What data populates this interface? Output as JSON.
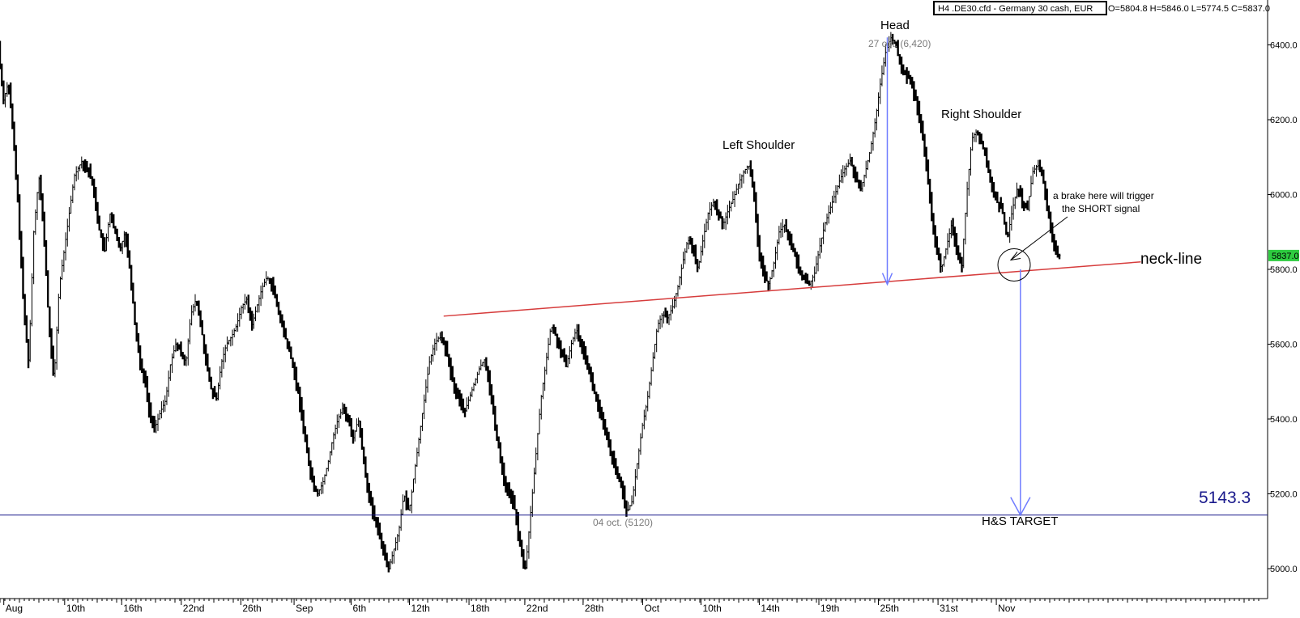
{
  "header": {
    "instrument_box": "H4 .DE30.cfd - Germany 30 cash, EUR",
    "ohlc": "O=5804.8 H=5846.0 L=5774.5 C=5837.0"
  },
  "chart_data": {
    "type": "candlestick",
    "title": "",
    "xlabel": "",
    "ylabel": "",
    "ylim": [
      4920,
      6520
    ],
    "y_ticks": [
      5000.0,
      5200.0,
      5400.0,
      5600.0,
      5800.0,
      6000.0,
      6200.0,
      6400.0
    ],
    "x_tick_labels": [
      "Aug",
      "10th",
      "16th",
      "22nd",
      "26th",
      "Sep",
      "6th",
      "12th",
      "18th",
      "22nd",
      "28th",
      "Oct",
      "10th",
      "14th",
      "19th",
      "25th",
      "31st",
      "Nov"
    ],
    "x_tick_positions": [
      0.003,
      0.051,
      0.096,
      0.143,
      0.19,
      0.232,
      0.277,
      0.323,
      0.37,
      0.414,
      0.46,
      0.507,
      0.553,
      0.599,
      0.646,
      0.693,
      0.74,
      0.786
    ],
    "price_path": [
      [
        0.0,
        6400
      ],
      [
        0.004,
        6250
      ],
      [
        0.008,
        6300
      ],
      [
        0.012,
        6150
      ],
      [
        0.016,
        5950
      ],
      [
        0.02,
        5700
      ],
      [
        0.024,
        5550
      ],
      [
        0.028,
        5900
      ],
      [
        0.032,
        6050
      ],
      [
        0.036,
        5900
      ],
      [
        0.04,
        5650
      ],
      [
        0.044,
        5500
      ],
      [
        0.048,
        5750
      ],
      [
        0.052,
        5850
      ],
      [
        0.056,
        5950
      ],
      [
        0.06,
        6050
      ],
      [
        0.066,
        6090
      ],
      [
        0.072,
        6060
      ],
      [
        0.076,
        6000
      ],
      [
        0.08,
        5900
      ],
      [
        0.084,
        5850
      ],
      [
        0.088,
        5950
      ],
      [
        0.092,
        5900
      ],
      [
        0.096,
        5850
      ],
      [
        0.1,
        5900
      ],
      [
        0.104,
        5800
      ],
      [
        0.108,
        5650
      ],
      [
        0.112,
        5550
      ],
      [
        0.116,
        5500
      ],
      [
        0.12,
        5400
      ],
      [
        0.124,
        5380
      ],
      [
        0.128,
        5420
      ],
      [
        0.132,
        5450
      ],
      [
        0.136,
        5550
      ],
      [
        0.14,
        5600
      ],
      [
        0.144,
        5580
      ],
      [
        0.148,
        5550
      ],
      [
        0.152,
        5680
      ],
      [
        0.156,
        5720
      ],
      [
        0.16,
        5650
      ],
      [
        0.164,
        5550
      ],
      [
        0.168,
        5480
      ],
      [
        0.172,
        5450
      ],
      [
        0.176,
        5550
      ],
      [
        0.18,
        5600
      ],
      [
        0.184,
        5620
      ],
      [
        0.188,
        5650
      ],
      [
        0.192,
        5700
      ],
      [
        0.196,
        5720
      ],
      [
        0.2,
        5650
      ],
      [
        0.204,
        5700
      ],
      [
        0.208,
        5750
      ],
      [
        0.212,
        5780
      ],
      [
        0.216,
        5760
      ],
      [
        0.22,
        5700
      ],
      [
        0.224,
        5650
      ],
      [
        0.228,
        5600
      ],
      [
        0.232,
        5550
      ],
      [
        0.236,
        5480
      ],
      [
        0.24,
        5400
      ],
      [
        0.244,
        5300
      ],
      [
        0.248,
        5230
      ],
      [
        0.252,
        5200
      ],
      [
        0.256,
        5230
      ],
      [
        0.26,
        5280
      ],
      [
        0.264,
        5350
      ],
      [
        0.268,
        5400
      ],
      [
        0.272,
        5430
      ],
      [
        0.276,
        5400
      ],
      [
        0.28,
        5350
      ],
      [
        0.284,
        5400
      ],
      [
        0.288,
        5300
      ],
      [
        0.292,
        5200
      ],
      [
        0.296,
        5140
      ],
      [
        0.3,
        5100
      ],
      [
        0.304,
        5050
      ],
      [
        0.308,
        5000
      ],
      [
        0.312,
        5050
      ],
      [
        0.316,
        5100
      ],
      [
        0.32,
        5200
      ],
      [
        0.324,
        5150
      ],
      [
        0.328,
        5250
      ],
      [
        0.332,
        5350
      ],
      [
        0.336,
        5450
      ],
      [
        0.34,
        5550
      ],
      [
        0.344,
        5600
      ],
      [
        0.348,
        5620
      ],
      [
        0.352,
        5600
      ],
      [
        0.356,
        5540
      ],
      [
        0.36,
        5480
      ],
      [
        0.364,
        5450
      ],
      [
        0.368,
        5420
      ],
      [
        0.372,
        5460
      ],
      [
        0.376,
        5500
      ],
      [
        0.38,
        5540
      ],
      [
        0.384,
        5560
      ],
      [
        0.388,
        5480
      ],
      [
        0.392,
        5380
      ],
      [
        0.396,
        5300
      ],
      [
        0.4,
        5220
      ],
      [
        0.404,
        5200
      ],
      [
        0.408,
        5150
      ],
      [
        0.412,
        5050
      ],
      [
        0.416,
        5000
      ],
      [
        0.42,
        5150
      ],
      [
        0.424,
        5300
      ],
      [
        0.428,
        5450
      ],
      [
        0.432,
        5550
      ],
      [
        0.436,
        5650
      ],
      [
        0.44,
        5620
      ],
      [
        0.444,
        5580
      ],
      [
        0.448,
        5540
      ],
      [
        0.452,
        5600
      ],
      [
        0.456,
        5640
      ],
      [
        0.46,
        5600
      ],
      [
        0.464,
        5560
      ],
      [
        0.468,
        5500
      ],
      [
        0.472,
        5450
      ],
      [
        0.476,
        5400
      ],
      [
        0.48,
        5350
      ],
      [
        0.484,
        5300
      ],
      [
        0.488,
        5250
      ],
      [
        0.492,
        5220
      ],
      [
        0.496,
        5150
      ],
      [
        0.5,
        5180
      ],
      [
        0.504,
        5280
      ],
      [
        0.508,
        5380
      ],
      [
        0.512,
        5450
      ],
      [
        0.516,
        5550
      ],
      [
        0.52,
        5650
      ],
      [
        0.524,
        5680
      ],
      [
        0.528,
        5670
      ],
      [
        0.532,
        5700
      ],
      [
        0.536,
        5750
      ],
      [
        0.54,
        5820
      ],
      [
        0.544,
        5880
      ],
      [
        0.548,
        5860
      ],
      [
        0.552,
        5800
      ],
      [
        0.556,
        5880
      ],
      [
        0.56,
        5950
      ],
      [
        0.564,
        5980
      ],
      [
        0.568,
        5950
      ],
      [
        0.572,
        5920
      ],
      [
        0.576,
        5960
      ],
      [
        0.58,
        5990
      ],
      [
        0.584,
        6030
      ],
      [
        0.588,
        6060
      ],
      [
        0.592,
        6080
      ],
      [
        0.596,
        6000
      ],
      [
        0.6,
        5850
      ],
      [
        0.604,
        5780
      ],
      [
        0.608,
        5760
      ],
      [
        0.612,
        5820
      ],
      [
        0.616,
        5900
      ],
      [
        0.62,
        5920
      ],
      [
        0.624,
        5880
      ],
      [
        0.628,
        5840
      ],
      [
        0.632,
        5800
      ],
      [
        0.636,
        5770
      ],
      [
        0.64,
        5760
      ],
      [
        0.644,
        5790
      ],
      [
        0.648,
        5860
      ],
      [
        0.652,
        5920
      ],
      [
        0.656,
        5960
      ],
      [
        0.66,
        6000
      ],
      [
        0.664,
        6040
      ],
      [
        0.668,
        6070
      ],
      [
        0.672,
        6090
      ],
      [
        0.676,
        6050
      ],
      [
        0.68,
        6010
      ],
      [
        0.684,
        6060
      ],
      [
        0.688,
        6120
      ],
      [
        0.692,
        6200
      ],
      [
        0.696,
        6300
      ],
      [
        0.7,
        6380
      ],
      [
        0.704,
        6420
      ],
      [
        0.708,
        6400
      ],
      [
        0.712,
        6340
      ],
      [
        0.716,
        6320
      ],
      [
        0.72,
        6300
      ],
      [
        0.724,
        6250
      ],
      [
        0.728,
        6180
      ],
      [
        0.732,
        6080
      ],
      [
        0.736,
        5960
      ],
      [
        0.74,
        5850
      ],
      [
        0.744,
        5800
      ],
      [
        0.748,
        5860
      ],
      [
        0.752,
        5920
      ],
      [
        0.756,
        5860
      ],
      [
        0.76,
        5800
      ],
      [
        0.764,
        6000
      ],
      [
        0.768,
        6150
      ],
      [
        0.772,
        6170
      ],
      [
        0.776,
        6140
      ],
      [
        0.78,
        6080
      ],
      [
        0.784,
        6020
      ],
      [
        0.788,
        5980
      ],
      [
        0.792,
        5960
      ],
      [
        0.796,
        5880
      ],
      [
        0.8,
        5960
      ],
      [
        0.804,
        6020
      ],
      [
        0.808,
        5980
      ],
      [
        0.812,
        5960
      ],
      [
        0.816,
        6060
      ],
      [
        0.82,
        6080
      ],
      [
        0.824,
        6050
      ],
      [
        0.828,
        5950
      ],
      [
        0.832,
        5880
      ],
      [
        0.836,
        5837
      ]
    ],
    "neckline": {
      "x": [
        0.35,
        0.9
      ],
      "y": [
        5675,
        5820
      ],
      "color": "#d63c3c"
    },
    "target_line": {
      "y": 5143.3,
      "color": "#1a1a8c"
    },
    "current_price": {
      "value": "5837.0",
      "color": "#2ecc40"
    },
    "annotations": {
      "head_label": "Head",
      "head_point": "27 oct. (6,420)",
      "left_shoulder": "Left Shoulder",
      "right_shoulder": "Right Shoulder",
      "break_note_1": "a brake here will trigger",
      "break_note_2": "the SHORT signal",
      "neckline_label": "neck-line",
      "target_value": "5143.3",
      "target_label": "H&S TARGET",
      "low_point": "04 oct. (5120)"
    },
    "arrow_color": "#6f7cff"
  }
}
